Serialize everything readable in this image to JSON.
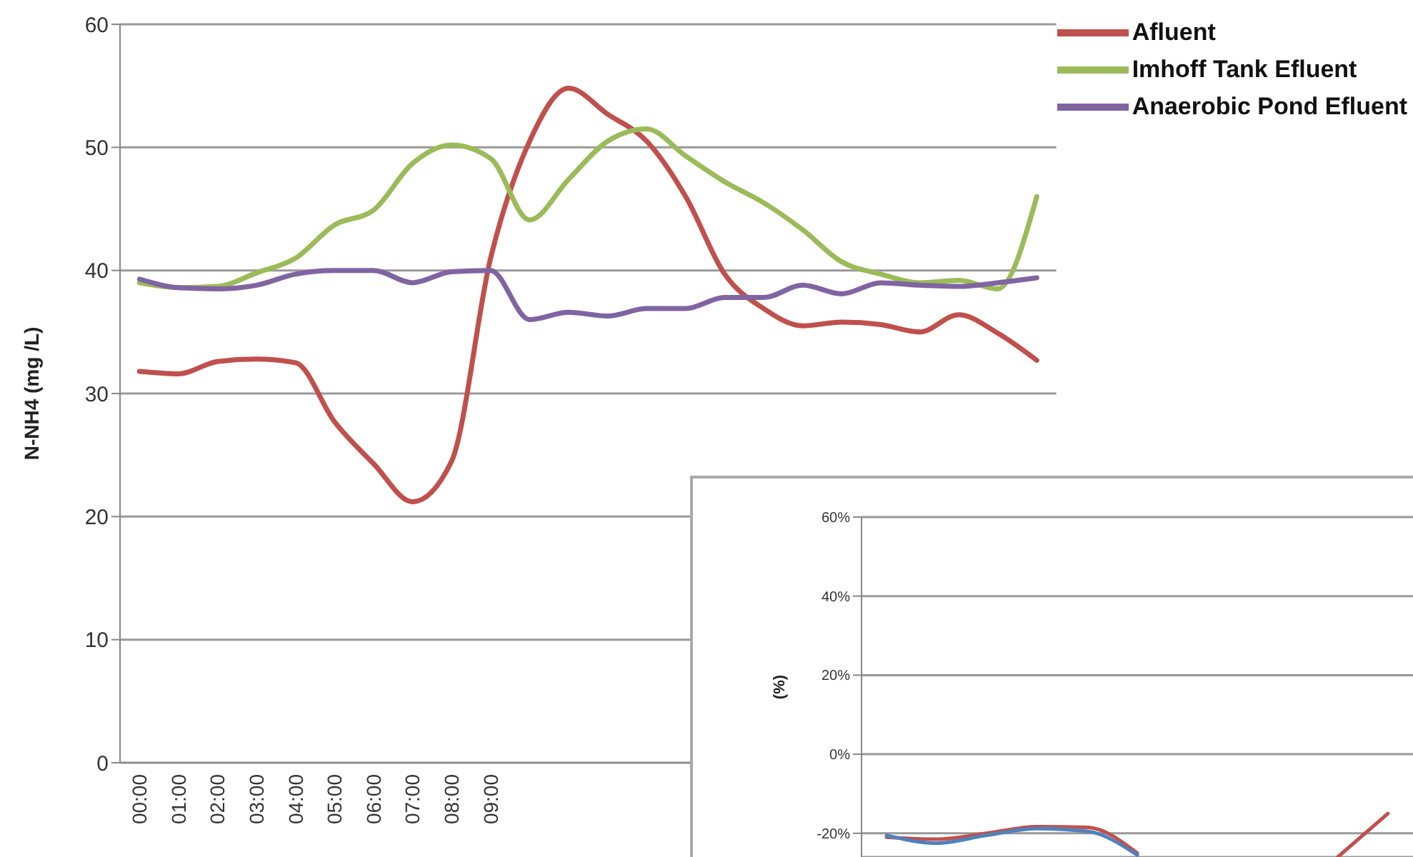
{
  "chart_data": [
    {
      "type": "line",
      "ylabel": "N-NH4 (mg /L)",
      "categories": [
        "00:00",
        "01:00",
        "02:00",
        "03:00",
        "04:00",
        "05:00",
        "06:00",
        "07:00",
        "08:00",
        "09:00",
        null,
        null,
        null,
        null,
        null,
        null,
        null,
        null,
        null,
        null,
        null,
        null,
        null,
        null
      ],
      "series": [
        {
          "name": "Afluent",
          "color": "#c0504d",
          "values": [
            31.8,
            31.6,
            32.6,
            32.8,
            32.5,
            27.7,
            24.3,
            21.2,
            24.5,
            41,
            50.5,
            54.8,
            52.7,
            50.5,
            46,
            39.7,
            36.9,
            35.5,
            35.8,
            35.6,
            35,
            36.4,
            34.9,
            32.7
          ]
        },
        {
          "name": "Imhoff Tank Efluent",
          "color": "#9bbb59",
          "values": [
            39,
            38.6,
            38.7,
            39.8,
            41,
            43.7,
            44.9,
            48.7,
            50.2,
            49.1,
            44.1,
            47.4,
            50.5,
            51.5,
            49.3,
            47.2,
            45.5,
            43.3,
            40.7,
            39.7,
            39,
            39.2,
            38.5,
            46
          ]
        },
        {
          "name": "Anaerobic Pond Efluent",
          "color": "#8064a2",
          "values": [
            39.3,
            38.6,
            38.5,
            38.8,
            39.7,
            40,
            40,
            39,
            39.9,
            40,
            36,
            36.6,
            36.3,
            36.9,
            36.9,
            37.8,
            37.8,
            38.8,
            38.1,
            39,
            38.8,
            38.7,
            39,
            39.4
          ]
        }
      ],
      "ylim": [
        0,
        60
      ],
      "yticks": [
        0,
        10,
        20,
        30,
        40,
        50,
        60
      ],
      "grid": "y",
      "legend": "top right",
      "line_style": "solid",
      "marker": "none"
    },
    {
      "type": "line",
      "ylabel": "(%)",
      "tick_labels": "y",
      "categories": [
        null,
        null,
        null,
        null,
        null,
        null,
        null,
        null,
        null,
        null,
        null
      ],
      "series": [
        {
          "color": "#c0504d",
          "values": [
            -21,
            -21.5,
            -20,
            -18.3,
            -18.5,
            -25,
            null,
            null,
            null,
            -26,
            -15
          ]
        },
        {
          "color": "#4f81bd",
          "values": [
            -20.5,
            -22.5,
            -20.5,
            -18.8,
            -19.5,
            -25.5,
            null,
            null,
            null,
            null,
            null
          ]
        }
      ],
      "ylim": [
        -26,
        60
      ],
      "yticks": [
        {
          "value": 60,
          "label": "60%"
        },
        {
          "value": 40,
          "label": "40%"
        },
        {
          "value": 20,
          "label": "20%"
        },
        {
          "value": 0,
          "label": "0%"
        },
        {
          "value": -20,
          "label": "-20%"
        }
      ],
      "grid": "y",
      "line_style": "solid",
      "marker": "none"
    }
  ]
}
